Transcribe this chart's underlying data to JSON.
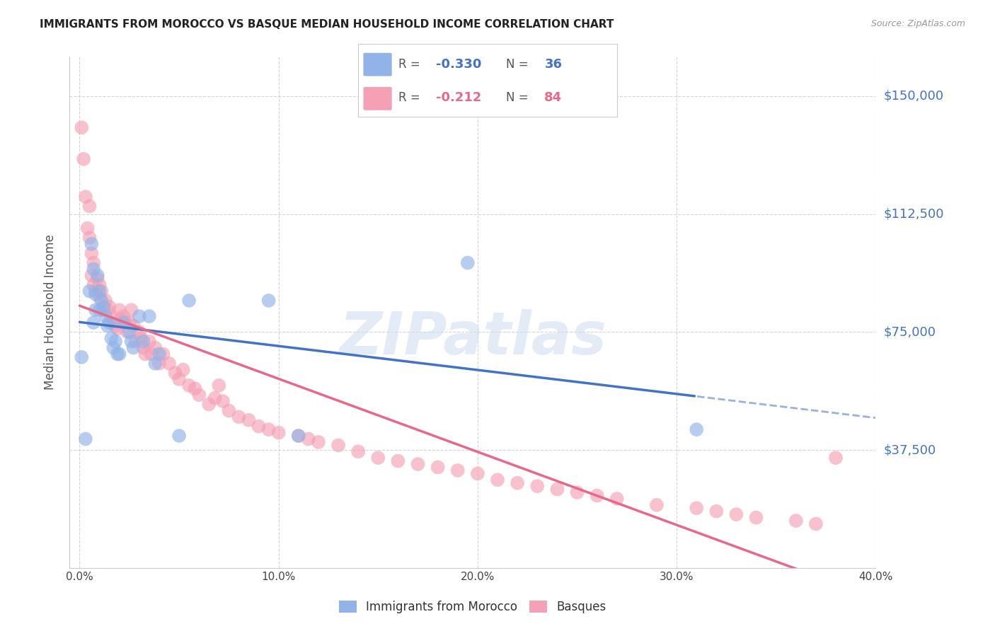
{
  "title": "IMMIGRANTS FROM MOROCCO VS BASQUE MEDIAN HOUSEHOLD INCOME CORRELATION CHART",
  "source": "Source: ZipAtlas.com",
  "ylabel": "Median Household Income",
  "xlim": [
    -0.005,
    0.4
  ],
  "ylim": [
    0,
    162500
  ],
  "yticks": [
    37500,
    75000,
    112500,
    150000
  ],
  "ytick_labels": [
    "$37,500",
    "$75,000",
    "$112,500",
    "$150,000"
  ],
  "xticks": [
    0.0,
    0.1,
    0.2,
    0.3,
    0.4
  ],
  "xtick_labels": [
    "0.0%",
    "10.0%",
    "20.0%",
    "30.0%",
    "40.0%"
  ],
  "watermark": "ZIPatlas",
  "series1_name": "Immigrants from Morocco",
  "series1_color": "#91b3e8",
  "series1_R": -0.33,
  "series1_N": 36,
  "series2_name": "Basques",
  "series2_color": "#f4a0b5",
  "series2_R": -0.212,
  "series2_N": 84,
  "series1_x": [
    0.001,
    0.003,
    0.005,
    0.006,
    0.007,
    0.007,
    0.008,
    0.008,
    0.009,
    0.01,
    0.01,
    0.011,
    0.012,
    0.013,
    0.014,
    0.015,
    0.016,
    0.017,
    0.018,
    0.019,
    0.02,
    0.022,
    0.025,
    0.026,
    0.027,
    0.03,
    0.032,
    0.035,
    0.038,
    0.04,
    0.05,
    0.055,
    0.095,
    0.11,
    0.195,
    0.31
  ],
  "series1_y": [
    67000,
    41000,
    88000,
    103000,
    95000,
    78000,
    87000,
    82000,
    93000,
    88000,
    82000,
    85000,
    83000,
    80000,
    77000,
    78000,
    73000,
    70000,
    72000,
    68000,
    68000,
    78000,
    75000,
    72000,
    70000,
    80000,
    72000,
    80000,
    65000,
    68000,
    42000,
    85000,
    85000,
    42000,
    97000,
    44000
  ],
  "series2_x": [
    0.001,
    0.002,
    0.003,
    0.004,
    0.005,
    0.005,
    0.006,
    0.006,
    0.007,
    0.007,
    0.008,
    0.009,
    0.01,
    0.01,
    0.011,
    0.012,
    0.013,
    0.014,
    0.015,
    0.016,
    0.017,
    0.018,
    0.019,
    0.02,
    0.021,
    0.022,
    0.023,
    0.024,
    0.025,
    0.026,
    0.027,
    0.028,
    0.03,
    0.031,
    0.032,
    0.033,
    0.035,
    0.036,
    0.038,
    0.04,
    0.042,
    0.045,
    0.048,
    0.05,
    0.052,
    0.055,
    0.058,
    0.06,
    0.065,
    0.068,
    0.07,
    0.072,
    0.075,
    0.08,
    0.085,
    0.09,
    0.095,
    0.1,
    0.11,
    0.115,
    0.12,
    0.13,
    0.14,
    0.15,
    0.16,
    0.17,
    0.18,
    0.19,
    0.2,
    0.21,
    0.22,
    0.23,
    0.24,
    0.25,
    0.26,
    0.27,
    0.29,
    0.31,
    0.32,
    0.33,
    0.34,
    0.36,
    0.37,
    0.38
  ],
  "series2_y": [
    140000,
    130000,
    118000,
    108000,
    105000,
    115000,
    100000,
    93000,
    90000,
    97000,
    88000,
    92000,
    86000,
    90000,
    88000,
    82000,
    85000,
    82000,
    83000,
    80000,
    78000,
    77000,
    76000,
    82000,
    79000,
    80000,
    78000,
    75000,
    78000,
    82000,
    77000,
    72000,
    75000,
    73000,
    70000,
    68000,
    72000,
    68000,
    70000,
    65000,
    68000,
    65000,
    62000,
    60000,
    63000,
    58000,
    57000,
    55000,
    52000,
    54000,
    58000,
    53000,
    50000,
    48000,
    47000,
    45000,
    44000,
    43000,
    42000,
    41000,
    40000,
    39000,
    37000,
    35000,
    34000,
    33000,
    32000,
    31000,
    30000,
    28000,
    27000,
    26000,
    25000,
    24000,
    23000,
    22000,
    20000,
    19000,
    18000,
    17000,
    16000,
    15000,
    14000,
    35000
  ],
  "line_color_blue": "#4472c4",
  "line_color_pink": "#e8688a",
  "grid_color": "#d0d0d0",
  "background_color": "#ffffff",
  "title_fontsize": 11,
  "axis_label_color": "#4472c4"
}
